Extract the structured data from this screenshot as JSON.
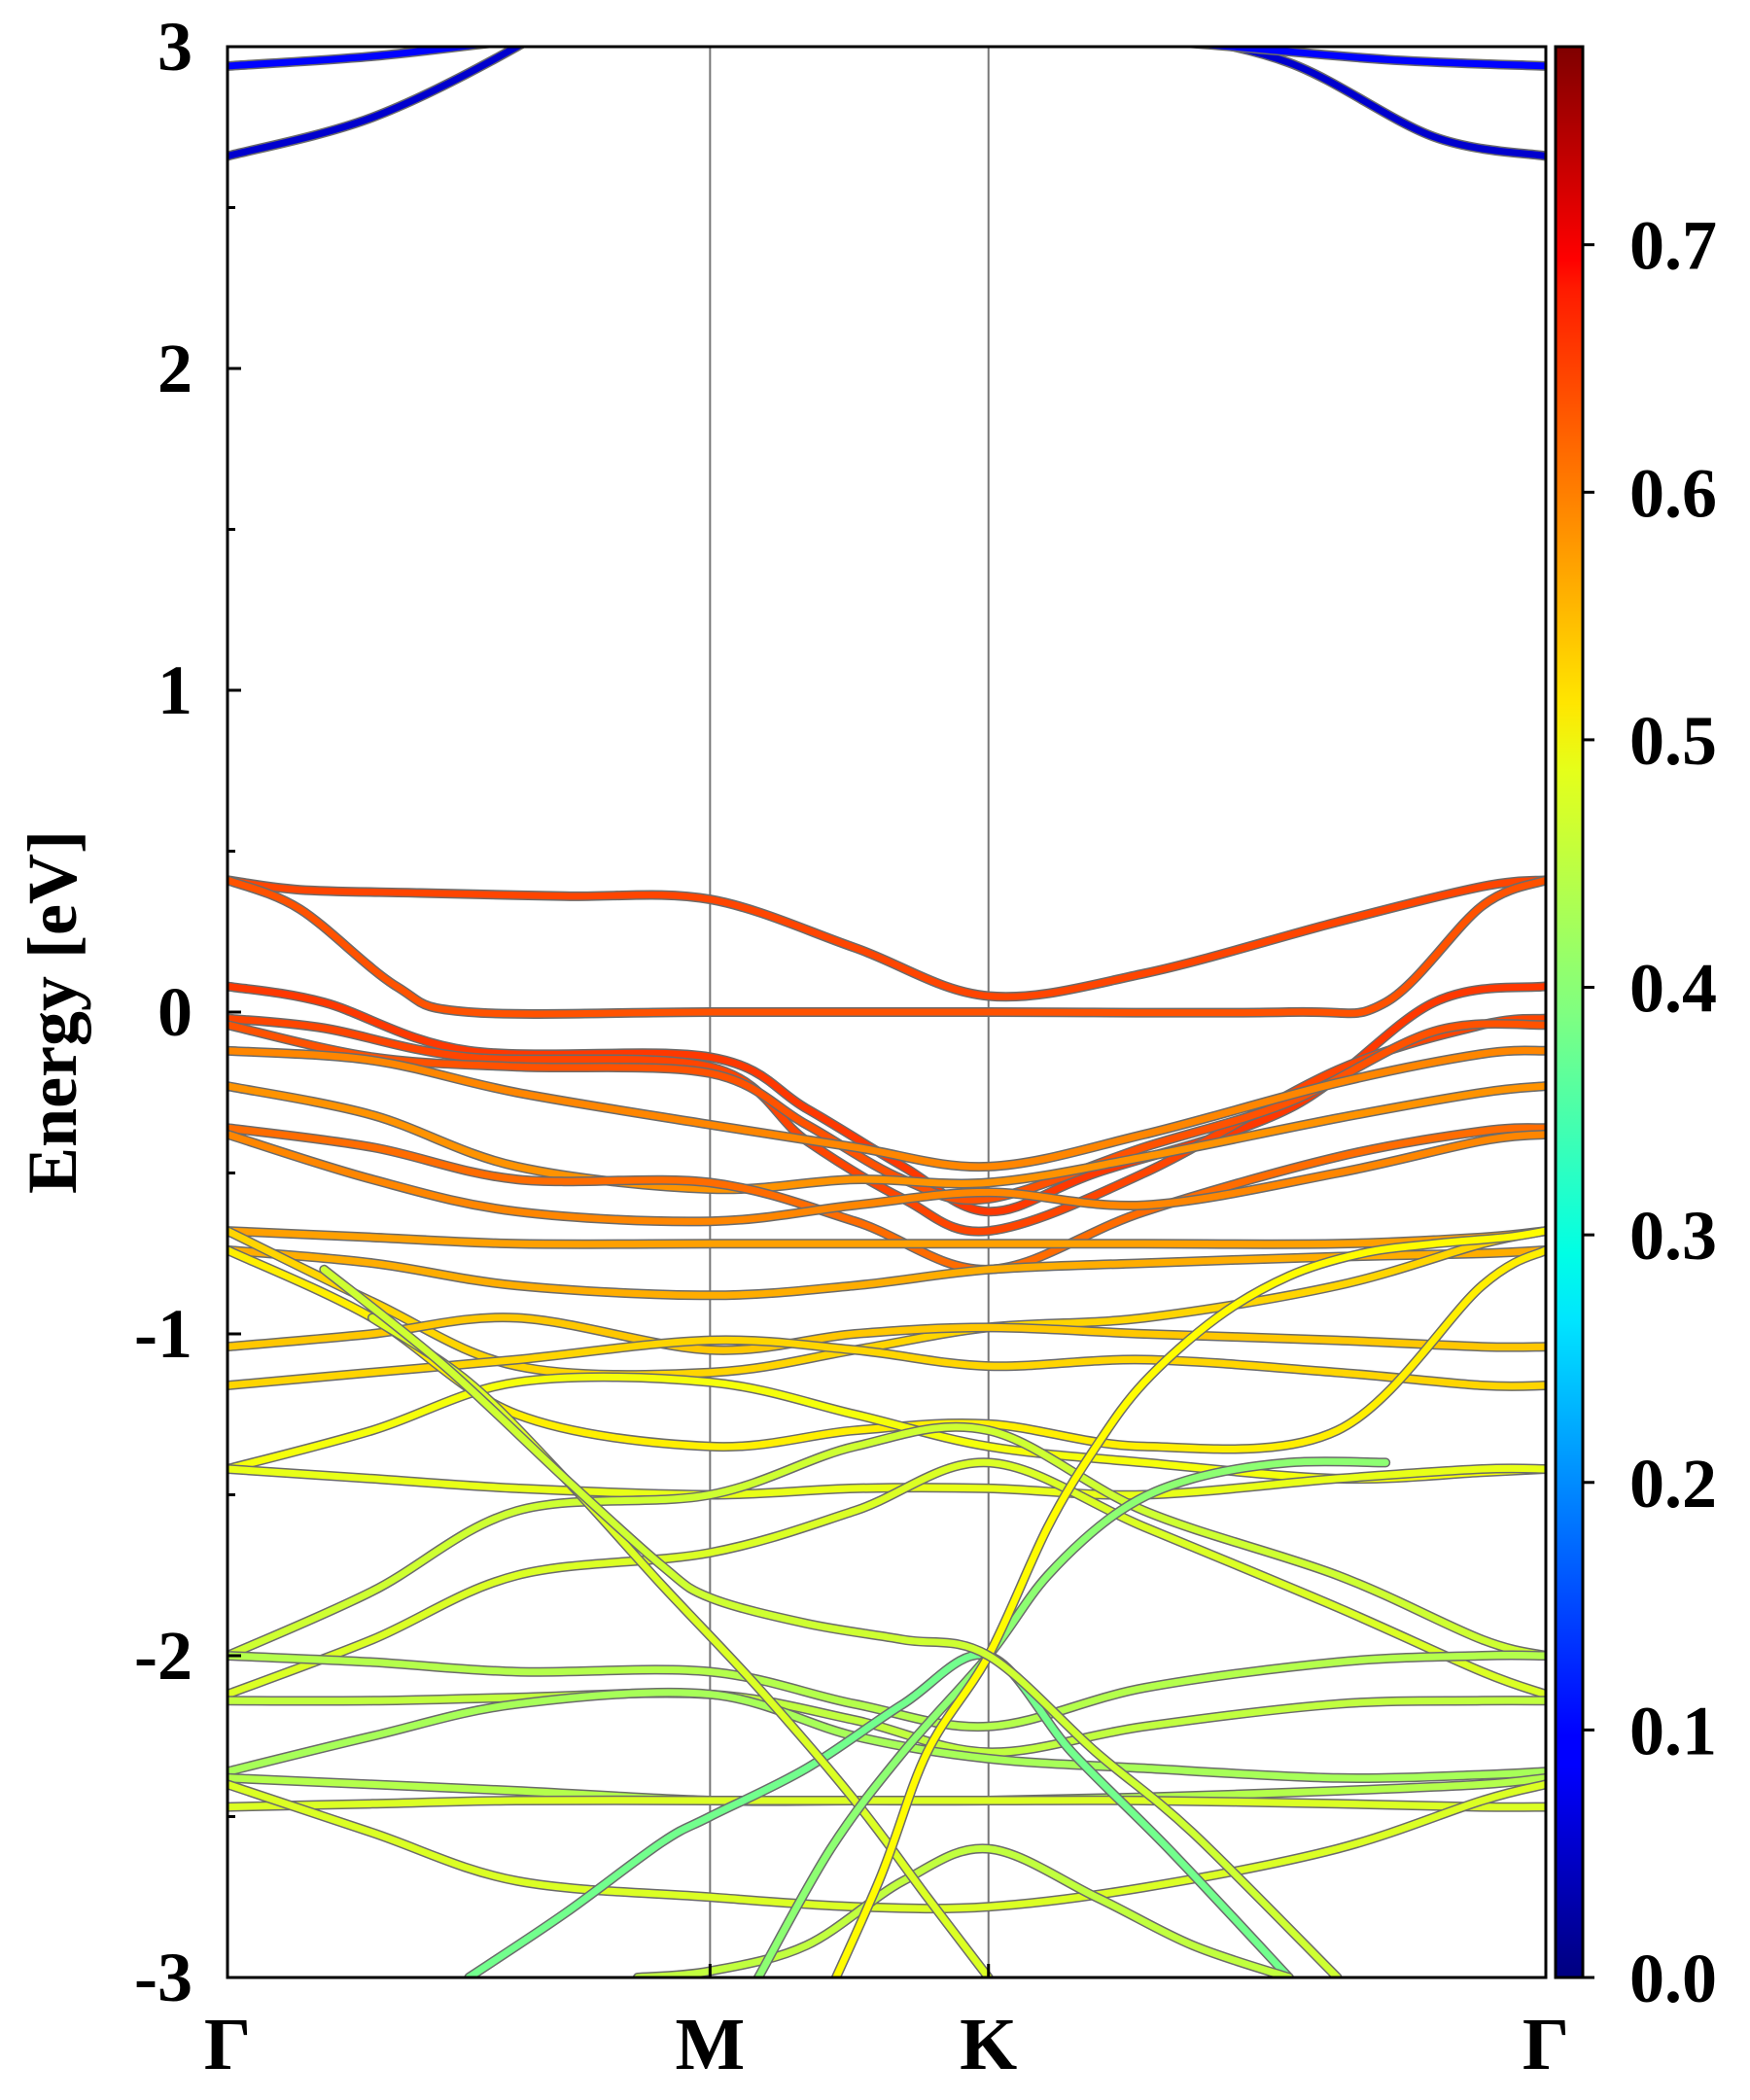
{
  "chart_data": {
    "type": "line",
    "title": "",
    "ylabel": "Energy [eV]",
    "xlabel": "",
    "ylim": [
      -3,
      3
    ],
    "yticks": [
      "-3",
      "-2",
      "-1",
      "0",
      "1",
      "2",
      "3"
    ],
    "kpath": {
      "labels": [
        "Γ",
        "M",
        "K",
        "Γ"
      ],
      "positions": [
        0,
        1,
        1.577,
        2.732
      ]
    },
    "colorbar": {
      "range": [
        0.0,
        0.78
      ],
      "ticks": [
        "0.0",
        "0.1",
        "0.2",
        "0.3",
        "0.4",
        "0.5",
        "0.6",
        "0.7"
      ],
      "colormap": "jet"
    },
    "series": [
      {
        "x": [
          0,
          0.3,
          0.6,
          0.8,
          1,
          1.3,
          1.577,
          1.9,
          2.2,
          2.5,
          2.732
        ],
        "y": [
          2.66,
          2.78,
          3.0,
          3.2,
          3.3,
          3.2,
          3.12,
          3.05,
          2.95,
          2.72,
          2.66
        ],
        "w": 0.06
      },
      {
        "x": [
          0,
          0.3,
          0.6,
          1,
          1.577,
          2.0,
          2.4,
          2.732
        ],
        "y": [
          2.94,
          2.97,
          3.02,
          3.08,
          3.05,
          3.01,
          2.96,
          2.94
        ],
        "w": 0.1
      },
      {
        "x": [
          0,
          0.15,
          0.4,
          0.7,
          1,
          1.3,
          1.577,
          1.9,
          2.3,
          2.6,
          2.732
        ],
        "y": [
          0.41,
          0.38,
          0.37,
          0.36,
          0.35,
          0.2,
          0.05,
          0.12,
          0.28,
          0.39,
          0.41
        ],
        "w": 0.63
      },
      {
        "x": [
          0,
          0.15,
          0.35,
          0.5,
          1,
          1.577,
          2.2,
          2.4,
          2.6,
          2.732
        ],
        "y": [
          0.41,
          0.32,
          0.08,
          0.0,
          0.0,
          0.0,
          0.0,
          0.03,
          0.33,
          0.41
        ],
        "w": 0.62
      },
      {
        "x": [
          0,
          0.2,
          0.5,
          1,
          1.2,
          1.4,
          1.577,
          1.8,
          2.2,
          2.5,
          2.732
        ],
        "y": [
          0.08,
          0.03,
          -0.12,
          -0.14,
          -0.3,
          -0.48,
          -0.62,
          -0.5,
          -0.3,
          0.03,
          0.08
        ],
        "w": 0.64
      },
      {
        "x": [
          0,
          0.2,
          0.5,
          1,
          1.2,
          1.4,
          1.577,
          1.9,
          2.3,
          2.6,
          2.732
        ],
        "y": [
          -0.02,
          -0.05,
          -0.14,
          -0.17,
          -0.4,
          -0.58,
          -0.68,
          -0.5,
          -0.18,
          -0.04,
          -0.02
        ],
        "w": 0.63
      },
      {
        "x": [
          0,
          0.3,
          0.6,
          1,
          1.2,
          1.4,
          1.577,
          1.9,
          2.2,
          2.5,
          2.732
        ],
        "y": [
          -0.04,
          -0.14,
          -0.17,
          -0.19,
          -0.35,
          -0.52,
          -0.58,
          -0.42,
          -0.28,
          -0.06,
          -0.04
        ],
        "w": 0.62
      },
      {
        "x": [
          0,
          0.3,
          0.6,
          1,
          1.3,
          1.577,
          1.9,
          2.3,
          2.6,
          2.732
        ],
        "y": [
          -0.12,
          -0.15,
          -0.25,
          -0.35,
          -0.42,
          -0.48,
          -0.38,
          -0.22,
          -0.13,
          -0.12
        ],
        "w": 0.58
      },
      {
        "x": [
          0,
          0.3,
          0.6,
          1,
          1.3,
          1.577,
          1.9,
          2.3,
          2.6,
          2.732
        ],
        "y": [
          -0.23,
          -0.32,
          -0.48,
          -0.55,
          -0.52,
          -0.53,
          -0.45,
          -0.33,
          -0.25,
          -0.23
        ],
        "w": 0.57
      },
      {
        "x": [
          0,
          0.3,
          0.6,
          1,
          1.3,
          1.577,
          1.9,
          2.3,
          2.6,
          2.732
        ],
        "y": [
          -0.36,
          -0.42,
          -0.52,
          -0.53,
          -0.65,
          -0.8,
          -0.62,
          -0.45,
          -0.37,
          -0.36
        ],
        "w": 0.6
      },
      {
        "x": [
          0,
          0.3,
          0.6,
          1,
          1.3,
          1.577,
          1.9,
          2.3,
          2.6,
          2.732
        ],
        "y": [
          -0.38,
          -0.52,
          -0.62,
          -0.65,
          -0.6,
          -0.56,
          -0.6,
          -0.5,
          -0.4,
          -0.38
        ],
        "w": 0.58
      },
      {
        "x": [
          0,
          0.3,
          0.6,
          1,
          1.3,
          1.577,
          1.9,
          2.3,
          2.6,
          2.732
        ],
        "y": [
          -0.68,
          -0.7,
          -0.72,
          -0.72,
          -0.72,
          -0.72,
          -0.72,
          -0.72,
          -0.7,
          -0.68
        ],
        "w": 0.56
      },
      {
        "x": [
          0,
          0.3,
          0.6,
          1,
          1.3,
          1.577,
          1.9,
          2.3,
          2.6,
          2.732
        ],
        "y": [
          -0.74,
          -0.78,
          -0.85,
          -0.88,
          -0.85,
          -0.8,
          -0.78,
          -0.76,
          -0.75,
          -0.74
        ],
        "w": 0.55
      },
      {
        "x": [
          0,
          0.3,
          0.6,
          1,
          1.3,
          1.577,
          1.9,
          2.3,
          2.6,
          2.732
        ],
        "y": [
          -0.68,
          -0.9,
          -1.1,
          -1.12,
          -1.05,
          -0.98,
          -0.95,
          -0.85,
          -0.72,
          -0.68
        ],
        "w": 0.52
      },
      {
        "x": [
          0,
          0.3,
          0.6,
          1,
          1.3,
          1.577,
          1.9,
          2.3,
          2.6,
          2.732
        ],
        "y": [
          -1.04,
          -1.0,
          -0.95,
          -1.05,
          -1.0,
          -0.98,
          -1.0,
          -1.02,
          -1.04,
          -1.04
        ],
        "w": 0.53
      },
      {
        "x": [
          0,
          0.3,
          0.6,
          1,
          1.3,
          1.577,
          1.9,
          2.3,
          2.6,
          2.732
        ],
        "y": [
          -1.16,
          -1.12,
          -1.08,
          -1.02,
          -1.05,
          -1.1,
          -1.08,
          -1.12,
          -1.16,
          -1.16
        ],
        "w": 0.52
      },
      {
        "x": [
          0,
          0.3,
          0.6,
          1,
          1.3,
          1.577,
          1.9,
          2.3,
          2.6,
          2.732
        ],
        "y": [
          -0.74,
          -0.95,
          -1.25,
          -1.35,
          -1.3,
          -1.28,
          -1.35,
          -1.3,
          -0.85,
          -0.74
        ],
        "w": 0.5
      },
      {
        "x": [
          0,
          0.3,
          0.6,
          1,
          1.3,
          1.577,
          1.9,
          2.3,
          2.6,
          2.732
        ],
        "y": [
          -1.42,
          -1.3,
          -1.15,
          -1.15,
          -1.25,
          -1.35,
          -1.4,
          -1.45,
          -1.43,
          -1.42
        ],
        "w": 0.48
      },
      {
        "x": [
          0,
          0.3,
          0.6,
          1,
          1.3,
          1.577,
          1.9,
          2.3,
          2.6,
          2.732
        ],
        "y": [
          -1.42,
          -1.45,
          -1.48,
          -1.5,
          -1.48,
          -1.48,
          -1.5,
          -1.45,
          -1.42,
          -1.42
        ],
        "w": 0.47
      },
      {
        "x": [
          0,
          0.3,
          0.6,
          1,
          1.3,
          1.577,
          1.9,
          2.3,
          2.6,
          2.732
        ],
        "y": [
          -2.0,
          -1.8,
          -1.55,
          -1.5,
          -1.35,
          -1.3,
          -1.55,
          -1.75,
          -1.95,
          -2.0
        ],
        "w": 0.45
      },
      {
        "x": [
          0,
          0.3,
          0.6,
          1,
          1.3,
          1.577,
          1.9,
          2.3,
          2.6,
          2.732
        ],
        "y": [
          -2.12,
          -1.95,
          -1.75,
          -1.68,
          -1.55,
          -1.4,
          -1.6,
          -1.85,
          -2.05,
          -2.12
        ],
        "w": 0.46
      },
      {
        "x": [
          0,
          0.3,
          0.6,
          1,
          1.3,
          1.577,
          1.9,
          2.3,
          2.6,
          2.732
        ],
        "y": [
          -2.0,
          -2.02,
          -2.05,
          -2.05,
          -2.15,
          -2.22,
          -2.1,
          -2.02,
          -2.0,
          -2.0
        ],
        "w": 0.43
      },
      {
        "x": [
          0,
          0.3,
          0.6,
          1,
          1.3,
          1.577,
          1.9,
          2.3,
          2.6,
          2.732
        ],
        "y": [
          -2.14,
          -2.14,
          -2.13,
          -2.12,
          -2.2,
          -2.3,
          -2.22,
          -2.15,
          -2.14,
          -2.14
        ],
        "w": 0.44
      },
      {
        "x": [
          0,
          0.3,
          0.6,
          1,
          1.3,
          1.577,
          1.9,
          2.3,
          2.6,
          2.732
        ],
        "y": [
          -2.36,
          -2.25,
          -2.15,
          -2.12,
          -2.25,
          -2.32,
          -2.35,
          -2.38,
          -2.37,
          -2.36
        ],
        "w": 0.42
      },
      {
        "x": [
          0,
          0.3,
          0.6,
          1,
          1.3,
          1.577,
          1.9,
          2.3,
          2.6,
          2.732
        ],
        "y": [
          -2.38,
          -2.4,
          -2.42,
          -2.45,
          -2.45,
          -2.45,
          -2.44,
          -2.42,
          -2.4,
          -2.38
        ],
        "w": 0.43
      },
      {
        "x": [
          0,
          0.3,
          0.6,
          1,
          1.3,
          1.577,
          1.9,
          2.3,
          2.6,
          2.732
        ],
        "y": [
          -2.47,
          -2.46,
          -2.45,
          -2.45,
          -2.45,
          -2.45,
          -2.45,
          -2.46,
          -2.47,
          -2.47
        ],
        "w": 0.46
      },
      {
        "x": [
          0,
          0.3,
          0.6,
          1,
          1.3,
          1.577,
          1.9,
          2.3,
          2.6,
          2.732
        ],
        "y": [
          -2.4,
          -2.55,
          -2.7,
          -2.75,
          -2.78,
          -2.78,
          -2.72,
          -2.6,
          -2.45,
          -2.4
        ],
        "w": 0.46
      },
      {
        "x": [
          0.5,
          0.7,
          0.9,
          1,
          1.2,
          1.4,
          1.577,
          1.75,
          1.95,
          2.2
        ],
        "y": [
          -3.0,
          -2.8,
          -2.58,
          -2.5,
          -2.35,
          -2.15,
          -2.0,
          -2.3,
          -2.6,
          -3.0
        ],
        "w": 0.38
      },
      {
        "x": [
          0.85,
          1,
          1.2,
          1.4,
          1.577,
          1.8,
          2.0,
          2.2
        ],
        "y": [
          -3.0,
          -2.98,
          -2.9,
          -2.7,
          -2.6,
          -2.75,
          -2.9,
          -3.0
        ],
        "w": 0.44
      },
      {
        "x": [
          0.3,
          0.5,
          0.7,
          0.9,
          1.1,
          1.3,
          1.45,
          1.577
        ],
        "y": [
          -0.95,
          -1.15,
          -1.45,
          -1.78,
          -2.1,
          -2.45,
          -2.75,
          -3.0
        ],
        "w": 0.46
      },
      {
        "x": [
          1.1,
          1.25,
          1.4,
          1.577,
          1.7,
          1.85,
          2.0,
          2.2,
          2.4
        ],
        "y": [
          -3.0,
          -2.6,
          -2.3,
          -2.0,
          -1.75,
          -1.55,
          -1.45,
          -1.4,
          -1.4
        ],
        "w": 0.4
      },
      {
        "x": [
          1.2,
          1.35,
          1.45,
          1.577,
          1.7,
          1.8,
          1.9,
          2.05,
          2.2,
          2.35,
          2.5,
          2.65,
          2.732
        ],
        "y": [
          -3.2,
          -2.7,
          -2.3,
          -2.0,
          -1.6,
          -1.35,
          -1.15,
          -0.95,
          -0.82,
          -0.75,
          -0.72,
          -0.7,
          -0.68
        ],
        "w": 0.49
      },
      {
        "x": [
          0.2,
          0.45,
          0.7,
          0.9,
          1,
          1.2,
          1.4,
          1.577,
          1.8,
          2.0,
          2.3
        ],
        "y": [
          -0.8,
          -1.1,
          -1.45,
          -1.72,
          -1.82,
          -1.9,
          -1.95,
          -2.0,
          -2.3,
          -2.55,
          -3.0
        ],
        "w": 0.45
      }
    ]
  }
}
